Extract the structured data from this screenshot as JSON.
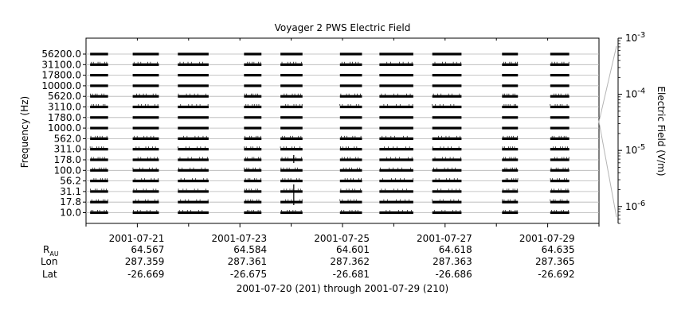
{
  "chart_data": {
    "type": "line",
    "title": "Voyager 2 PWS Electric Field",
    "ylabel": "Frequency (Hz)",
    "right_label": "Electric Field (V/m)",
    "xlabel": "2001-07-20 (201) through 2001-07-29 (210)",
    "frequencies": [
      "56200.0",
      "31100.0",
      "17800.0",
      "10000.0",
      "5620.0",
      "3110.0",
      "1780.0",
      "1000.0",
      "562.0",
      "311.0",
      "178.0",
      "100.0",
      "56.2",
      "31.1",
      "17.8",
      "10.0"
    ],
    "x_range_days": [
      0,
      10
    ],
    "date_ticks": [
      "2001-07-21",
      "2001-07-23",
      "2001-07-25",
      "2001-07-27",
      "2001-07-29"
    ],
    "date_tick_days": [
      1.0,
      3.0,
      5.0,
      7.0,
      9.0
    ],
    "data_segments_days": [
      [
        0.08,
        0.43
      ],
      [
        0.91,
        1.42
      ],
      [
        1.79,
        2.39
      ],
      [
        3.08,
        3.42
      ],
      [
        3.79,
        4.22
      ],
      [
        4.95,
        5.38
      ],
      [
        5.72,
        6.38
      ],
      [
        6.75,
        7.32
      ],
      [
        8.11,
        8.42
      ],
      [
        9.05,
        9.42
      ]
    ],
    "colorbar": {
      "scale": "log",
      "ticks": [
        {
          "base": "10",
          "exp": "-3"
        },
        {
          "base": "10",
          "exp": "-4"
        },
        {
          "base": "10",
          "exp": "-5"
        },
        {
          "base": "10",
          "exp": "-6"
        }
      ],
      "range": [
        5e-07,
        0.001
      ]
    },
    "ephemeris": {
      "row_labels": [
        "R",
        "Lon",
        "Lat"
      ],
      "r_subscript": "AU",
      "R": [
        "64.567",
        "64.584",
        "64.601",
        "64.618",
        "64.635"
      ],
      "Lon": [
        "287.359",
        "287.361",
        "287.362",
        "287.363",
        "287.365"
      ],
      "Lat": [
        "-26.669",
        "-26.675",
        "-26.681",
        "-26.686",
        "-26.692"
      ]
    },
    "grid": true
  }
}
